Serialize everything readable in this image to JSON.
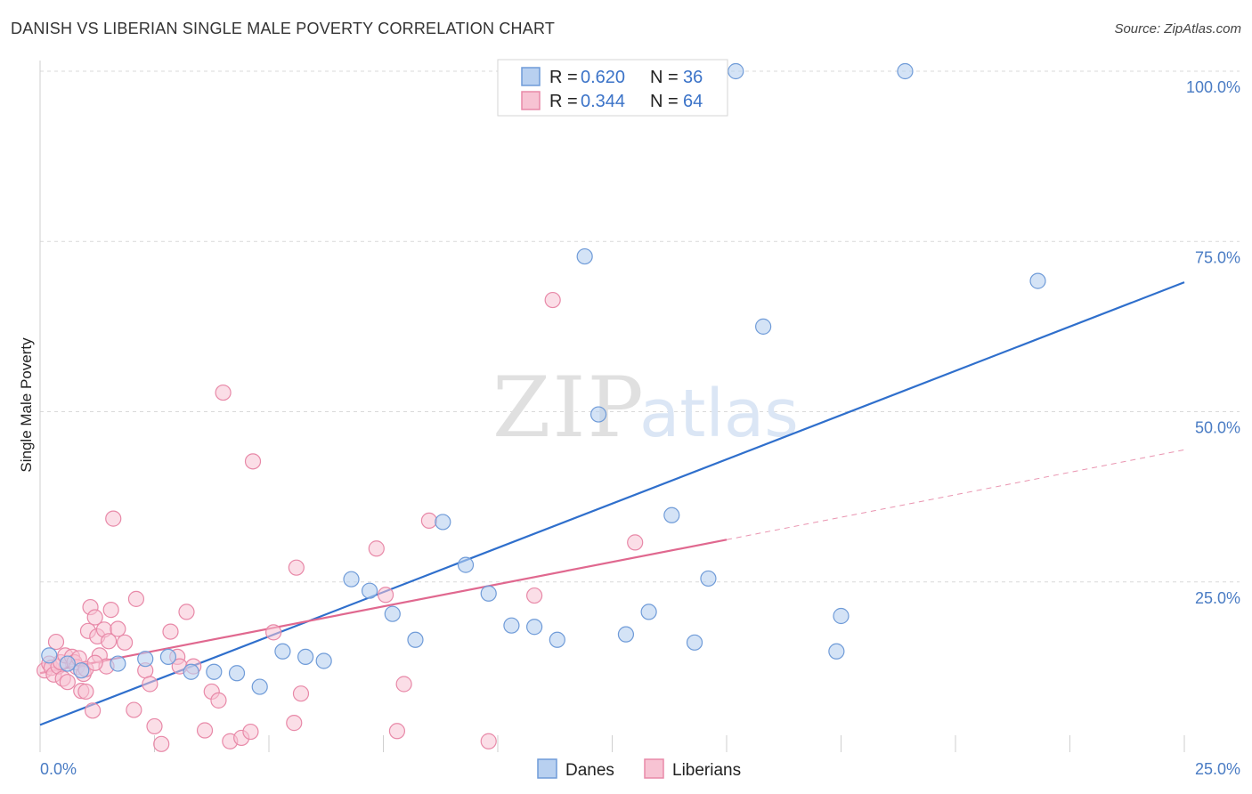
{
  "header": {
    "title": "DANISH VS LIBERIAN SINGLE MALE POVERTY CORRELATION CHART",
    "source": "Source: ZipAtlas.com"
  },
  "watermark": {
    "zip": "ZIP",
    "atlas": "atlas"
  },
  "legend": {
    "r_label": "R =",
    "n_label": "N =",
    "rows": [
      {
        "r": "0.620",
        "n": "36"
      },
      {
        "r": "0.344",
        "n": "64"
      }
    ]
  },
  "bottom_legend": [
    "Danes",
    "Liberians"
  ],
  "chart_data": {
    "type": "scatter",
    "title": "DANISH VS LIBERIAN SINGLE MALE POVERTY CORRELATION CHART",
    "xlabel": "",
    "ylabel": "Single Male Poverty",
    "x_tick_labels": [
      "0.0%",
      "25.0%"
    ],
    "y_tick_labels": [
      "25.0%",
      "50.0%",
      "75.0%",
      "100.0%"
    ],
    "xlim": [
      0,
      25
    ],
    "ylim": [
      0,
      100
    ],
    "grid": true,
    "legend_position": "top-center",
    "colors": {
      "danes_fill": "#b8d0f0",
      "danes_stroke": "#6f9bd8",
      "danes_line": "#2f6fcc",
      "liberians_fill": "#f7c3d3",
      "liberians_stroke": "#e889a8",
      "liberians_line": "#e0688f",
      "tick": "#4a7cc4",
      "grid": "#d9d9d9"
    },
    "series": [
      {
        "name": "Danes",
        "r": 0.62,
        "n": 36,
        "trend": {
          "x": [
            0,
            25
          ],
          "y": [
            4.0,
            69.0
          ]
        },
        "points": [
          {
            "x": 0.2,
            "y": 14.2
          },
          {
            "x": 0.6,
            "y": 13.0
          },
          {
            "x": 0.9,
            "y": 12.0
          },
          {
            "x": 1.7,
            "y": 13.0
          },
          {
            "x": 2.3,
            "y": 13.7
          },
          {
            "x": 2.8,
            "y": 14.0
          },
          {
            "x": 3.3,
            "y": 11.8
          },
          {
            "x": 3.8,
            "y": 11.8
          },
          {
            "x": 4.3,
            "y": 11.6
          },
          {
            "x": 4.8,
            "y": 9.6
          },
          {
            "x": 5.3,
            "y": 14.8
          },
          {
            "x": 5.8,
            "y": 14.0
          },
          {
            "x": 6.2,
            "y": 13.4
          },
          {
            "x": 6.8,
            "y": 25.4
          },
          {
            "x": 7.2,
            "y": 23.7
          },
          {
            "x": 7.7,
            "y": 20.3
          },
          {
            "x": 8.2,
            "y": 16.5
          },
          {
            "x": 8.8,
            "y": 33.8
          },
          {
            "x": 9.3,
            "y": 27.5
          },
          {
            "x": 9.8,
            "y": 23.3
          },
          {
            "x": 10.3,
            "y": 18.6
          },
          {
            "x": 10.8,
            "y": 18.4
          },
          {
            "x": 11.3,
            "y": 16.5
          },
          {
            "x": 11.9,
            "y": 72.8
          },
          {
            "x": 12.2,
            "y": 49.6
          },
          {
            "x": 12.8,
            "y": 17.3
          },
          {
            "x": 13.3,
            "y": 20.6
          },
          {
            "x": 13.8,
            "y": 34.8
          },
          {
            "x": 14.3,
            "y": 16.1
          },
          {
            "x": 14.6,
            "y": 25.5
          },
          {
            "x": 15.2,
            "y": 100.0
          },
          {
            "x": 15.8,
            "y": 62.5
          },
          {
            "x": 17.4,
            "y": 14.8
          },
          {
            "x": 17.5,
            "y": 20.0
          },
          {
            "x": 18.9,
            "y": 100.0
          },
          {
            "x": 21.8,
            "y": 69.2
          }
        ]
      },
      {
        "name": "Liberians",
        "r": 0.344,
        "n": 64,
        "trend": {
          "x": [
            0,
            15.0
          ],
          "y": [
            11.6,
            31.2
          ]
        },
        "trend_extension": {
          "x": [
            15.0,
            25
          ],
          "y": [
            31.2,
            44.4
          ]
        },
        "points": [
          {
            "x": 0.1,
            "y": 12.0
          },
          {
            "x": 0.2,
            "y": 13.0
          },
          {
            "x": 0.25,
            "y": 12.4
          },
          {
            "x": 0.3,
            "y": 11.4
          },
          {
            "x": 0.35,
            "y": 16.2
          },
          {
            "x": 0.4,
            "y": 12.6
          },
          {
            "x": 0.45,
            "y": 13.2
          },
          {
            "x": 0.5,
            "y": 10.8
          },
          {
            "x": 0.55,
            "y": 14.2
          },
          {
            "x": 0.6,
            "y": 10.3
          },
          {
            "x": 0.7,
            "y": 14.0
          },
          {
            "x": 0.75,
            "y": 13.2
          },
          {
            "x": 0.8,
            "y": 12.5
          },
          {
            "x": 0.85,
            "y": 13.8
          },
          {
            "x": 0.9,
            "y": 9.0
          },
          {
            "x": 0.95,
            "y": 11.5
          },
          {
            "x": 1.0,
            "y": 8.9
          },
          {
            "x": 1.0,
            "y": 12.2
          },
          {
            "x": 1.05,
            "y": 17.8
          },
          {
            "x": 1.1,
            "y": 21.3
          },
          {
            "x": 1.15,
            "y": 6.1
          },
          {
            "x": 1.2,
            "y": 19.8
          },
          {
            "x": 1.25,
            "y": 17.0
          },
          {
            "x": 1.3,
            "y": 14.2
          },
          {
            "x": 1.4,
            "y": 18.0
          },
          {
            "x": 1.45,
            "y": 12.6
          },
          {
            "x": 1.5,
            "y": 16.3
          },
          {
            "x": 1.55,
            "y": 20.9
          },
          {
            "x": 1.6,
            "y": 34.3
          },
          {
            "x": 1.7,
            "y": 18.1
          },
          {
            "x": 1.85,
            "y": 16.1
          },
          {
            "x": 2.05,
            "y": 6.2
          },
          {
            "x": 2.1,
            "y": 22.5
          },
          {
            "x": 2.3,
            "y": 12.0
          },
          {
            "x": 2.4,
            "y": 10.0
          },
          {
            "x": 2.5,
            "y": 3.8
          },
          {
            "x": 2.65,
            "y": 1.2
          },
          {
            "x": 2.85,
            "y": 17.7
          },
          {
            "x": 3.0,
            "y": 14.0
          },
          {
            "x": 3.05,
            "y": 12.6
          },
          {
            "x": 3.2,
            "y": 20.6
          },
          {
            "x": 3.35,
            "y": 12.6
          },
          {
            "x": 3.6,
            "y": 3.2
          },
          {
            "x": 3.75,
            "y": 8.9
          },
          {
            "x": 3.9,
            "y": 7.6
          },
          {
            "x": 4.0,
            "y": 52.8
          },
          {
            "x": 4.15,
            "y": 1.6
          },
          {
            "x": 4.4,
            "y": 2.1
          },
          {
            "x": 4.6,
            "y": 3.0
          },
          {
            "x": 4.65,
            "y": 42.7
          },
          {
            "x": 5.1,
            "y": 17.6
          },
          {
            "x": 5.55,
            "y": 4.3
          },
          {
            "x": 5.6,
            "y": 27.1
          },
          {
            "x": 5.7,
            "y": 8.6
          },
          {
            "x": 7.35,
            "y": 29.9
          },
          {
            "x": 7.55,
            "y": 23.1
          },
          {
            "x": 7.8,
            "y": 3.1
          },
          {
            "x": 7.95,
            "y": 10.0
          },
          {
            "x": 8.5,
            "y": 34.0
          },
          {
            "x": 9.8,
            "y": 1.6
          },
          {
            "x": 10.8,
            "y": 23.0
          },
          {
            "x": 11.2,
            "y": 66.4
          },
          {
            "x": 13.0,
            "y": 30.8
          },
          {
            "x": 1.2,
            "y": 13.1
          }
        ]
      }
    ]
  }
}
